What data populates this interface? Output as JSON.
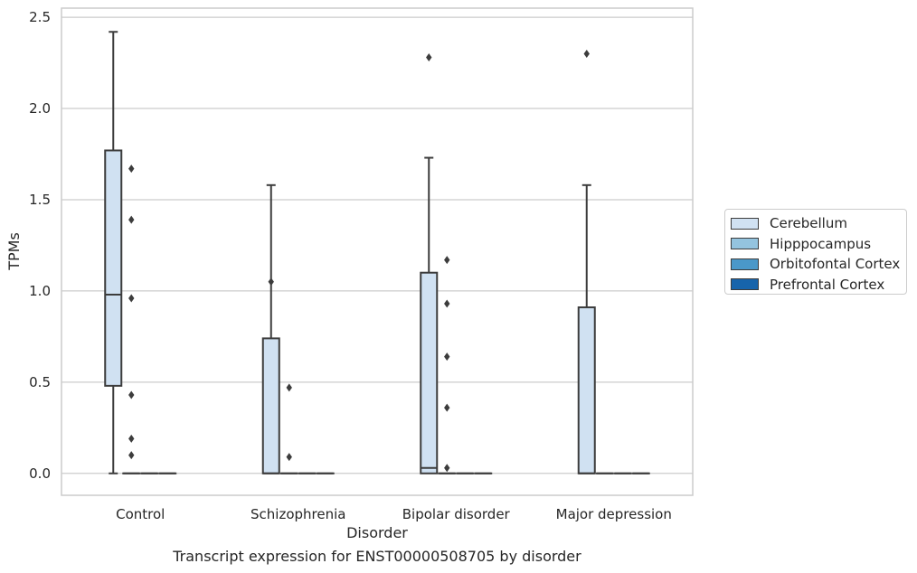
{
  "caption": "Transcript expression for ENST00000508705 by disorder",
  "chart_data": {
    "type": "box",
    "xlabel": "Disorder",
    "ylabel": "TPMs",
    "ylim": [
      -0.12,
      2.55
    ],
    "yticks": [
      "0.0",
      "0.5",
      "1.0",
      "1.5",
      "2.0",
      "2.5"
    ],
    "grid": true,
    "legend_position": "right",
    "categories": [
      "Control",
      "Schizophrenia",
      "Bipolar disorder",
      "Major depression"
    ],
    "series": [
      {
        "name": "Cerebellum",
        "color": "#d0e1f2",
        "boxes": [
          {
            "min": 0.0,
            "q1": 0.48,
            "median": 0.98,
            "q3": 1.77,
            "max": 2.42,
            "outliers": []
          },
          {
            "min": 0.0,
            "q1": 0.0,
            "median": 0.0,
            "q3": 0.74,
            "max": 1.58,
            "outliers": [
              1.05
            ]
          },
          {
            "min": 0.0,
            "q1": 0.0,
            "median": 0.03,
            "q3": 1.1,
            "max": 1.73,
            "outliers": [
              2.28
            ]
          },
          {
            "min": 0.0,
            "q1": 0.0,
            "median": 0.0,
            "q3": 0.91,
            "max": 1.58,
            "outliers": [
              2.3
            ]
          }
        ]
      },
      {
        "name": "Hipppocampus",
        "color": "#94c4df",
        "boxes": [
          {
            "min": 0.0,
            "q1": 0.0,
            "median": 0.0,
            "q3": 0.0,
            "max": 0.0,
            "outliers": [
              0.1,
              0.19,
              0.43,
              0.96,
              1.39,
              1.67
            ]
          },
          {
            "min": 0.0,
            "q1": 0.0,
            "median": 0.0,
            "q3": 0.0,
            "max": 0.0,
            "outliers": [
              0.09,
              0.47
            ]
          },
          {
            "min": 0.0,
            "q1": 0.0,
            "median": 0.0,
            "q3": 0.0,
            "max": 0.0,
            "outliers": [
              0.03,
              0.36,
              0.64,
              0.93,
              1.17
            ]
          },
          {
            "min": 0.0,
            "q1": 0.0,
            "median": 0.0,
            "q3": 0.0,
            "max": 0.0,
            "outliers": []
          }
        ]
      },
      {
        "name": "Orbitofontal Cortex",
        "color": "#4a98c9",
        "boxes": [
          {
            "min": 0.0,
            "q1": 0.0,
            "median": 0.0,
            "q3": 0.0,
            "max": 0.0,
            "outliers": []
          },
          {
            "min": 0.0,
            "q1": 0.0,
            "median": 0.0,
            "q3": 0.0,
            "max": 0.0,
            "outliers": []
          },
          {
            "min": 0.0,
            "q1": 0.0,
            "median": 0.0,
            "q3": 0.0,
            "max": 0.0,
            "outliers": []
          },
          {
            "min": 0.0,
            "q1": 0.0,
            "median": 0.0,
            "q3": 0.0,
            "max": 0.0,
            "outliers": []
          }
        ]
      },
      {
        "name": "Prefrontal Cortex",
        "color": "#1764ab",
        "boxes": [
          {
            "min": 0.0,
            "q1": 0.0,
            "median": 0.0,
            "q3": 0.0,
            "max": 0.0,
            "outliers": []
          },
          {
            "min": 0.0,
            "q1": 0.0,
            "median": 0.0,
            "q3": 0.0,
            "max": 0.0,
            "outliers": []
          },
          {
            "min": 0.0,
            "q1": 0.0,
            "median": 0.0,
            "q3": 0.0,
            "max": 0.0,
            "outliers": []
          },
          {
            "min": 0.0,
            "q1": 0.0,
            "median": 0.0,
            "q3": 0.0,
            "max": 0.0,
            "outliers": []
          }
        ]
      }
    ]
  }
}
